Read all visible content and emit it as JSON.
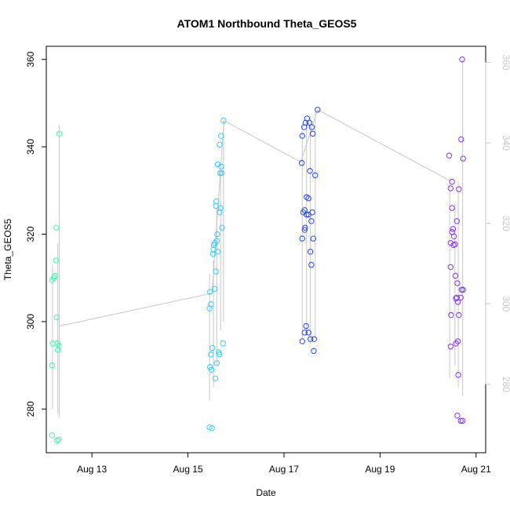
{
  "chart_data": {
    "type": "scatter",
    "title": "ATOM1 Northbound Theta_GEOS5",
    "xlabel": "Date",
    "ylabel": "Theta_GEOS5",
    "x_ticks": [
      {
        "label": "Aug 13",
        "day": 13
      },
      {
        "label": "Aug 15",
        "day": 15
      },
      {
        "label": "Aug 17",
        "day": 17
      },
      {
        "label": "Aug 19",
        "day": 19
      },
      {
        "label": "Aug 21",
        "day": 21
      }
    ],
    "xlim_days": [
      12.05,
      21.2
    ],
    "ylim": [
      270,
      363
    ],
    "y_ticks": [
      280,
      300,
      320,
      340,
      360
    ],
    "right_axis_ticks": [
      280,
      300,
      320,
      340,
      360
    ],
    "right_axis_ylim": [
      263,
      364
    ],
    "grid": false,
    "colors": {
      "group1": "#33ffaa",
      "group2": "#33ccff",
      "group3": "#2244ff",
      "group4": "#8833ff",
      "range_lines": "#c8c8c8",
      "mean_line": "#c8c8c8"
    },
    "mean_line": [
      {
        "day": 12.33,
        "value": 299
      },
      {
        "day": 15.5,
        "value": 306.5
      },
      {
        "day": 15.75,
        "value": 346
      },
      {
        "day": 17.35,
        "value": 336.5
      },
      {
        "day": 17.7,
        "value": 348.5
      },
      {
        "day": 20.5,
        "value": 332
      }
    ],
    "series": [
      {
        "color_key": "group1",
        "range_lines": [
          {
            "day": 12.18,
            "low": 280,
            "high": 313
          },
          {
            "day": 12.29,
            "low": 279,
            "high": 318
          },
          {
            "day": 12.32,
            "low": 278,
            "high": 345
          }
        ],
        "points": [
          {
            "day": 12.17,
            "value": 274
          },
          {
            "day": 12.17,
            "value": 290
          },
          {
            "day": 12.18,
            "value": 295
          },
          {
            "day": 12.17,
            "value": 309.5
          },
          {
            "day": 12.21,
            "value": 310
          },
          {
            "day": 12.23,
            "value": 310.5
          },
          {
            "day": 12.25,
            "value": 314
          },
          {
            "day": 12.26,
            "value": 321.5
          },
          {
            "day": 12.27,
            "value": 301
          },
          {
            "day": 12.28,
            "value": 295
          },
          {
            "day": 12.29,
            "value": 293.5
          },
          {
            "day": 12.31,
            "value": 294.5
          },
          {
            "day": 12.27,
            "value": 272.8
          },
          {
            "day": 12.31,
            "value": 273
          },
          {
            "day": 12.32,
            "value": 343
          }
        ]
      },
      {
        "color_key": "group2",
        "range_lines": [
          {
            "day": 15.45,
            "low": 282,
            "high": 311
          },
          {
            "day": 15.53,
            "low": 285,
            "high": 314
          },
          {
            "day": 15.6,
            "low": 290,
            "high": 326
          },
          {
            "day": 15.68,
            "low": 298,
            "high": 336
          },
          {
            "day": 15.74,
            "low": 300,
            "high": 346
          }
        ],
        "points": [
          {
            "day": 15.45,
            "value": 275.8
          },
          {
            "day": 15.5,
            "value": 275.6
          },
          {
            "day": 15.46,
            "value": 289.6
          },
          {
            "day": 15.49,
            "value": 289
          },
          {
            "day": 15.48,
            "value": 292.5
          },
          {
            "day": 15.51,
            "value": 294
          },
          {
            "day": 15.45,
            "value": 303
          },
          {
            "day": 15.48,
            "value": 304
          },
          {
            "day": 15.46,
            "value": 306.8
          },
          {
            "day": 15.57,
            "value": 287
          },
          {
            "day": 15.6,
            "value": 290.5
          },
          {
            "day": 15.64,
            "value": 293
          },
          {
            "day": 15.65,
            "value": 292.5
          },
          {
            "day": 15.73,
            "value": 295
          },
          {
            "day": 15.56,
            "value": 307.5
          },
          {
            "day": 15.58,
            "value": 311.5
          },
          {
            "day": 15.52,
            "value": 315.5
          },
          {
            "day": 15.53,
            "value": 316.5
          },
          {
            "day": 15.54,
            "value": 317.5
          },
          {
            "day": 15.56,
            "value": 318
          },
          {
            "day": 15.62,
            "value": 316
          },
          {
            "day": 15.6,
            "value": 318.5
          },
          {
            "day": 15.61,
            "value": 320
          },
          {
            "day": 15.71,
            "value": 321.5
          },
          {
            "day": 15.58,
            "value": 326.5
          },
          {
            "day": 15.59,
            "value": 327.5
          },
          {
            "day": 15.66,
            "value": 325
          },
          {
            "day": 15.68,
            "value": 326
          },
          {
            "day": 15.62,
            "value": 336
          },
          {
            "day": 15.67,
            "value": 334
          },
          {
            "day": 15.7,
            "value": 334
          },
          {
            "day": 15.69,
            "value": 335.5
          },
          {
            "day": 15.66,
            "value": 340.5
          },
          {
            "day": 15.69,
            "value": 342.5
          },
          {
            "day": 15.74,
            "value": 346
          }
        ]
      },
      {
        "color_key": "group3",
        "range_lines": [
          {
            "day": 17.38,
            "low": 296,
            "high": 345
          },
          {
            "day": 17.47,
            "low": 297,
            "high": 346
          },
          {
            "day": 17.55,
            "low": 295,
            "high": 347
          },
          {
            "day": 17.65,
            "low": 296,
            "high": 348
          }
        ],
        "points": [
          {
            "day": 17.38,
            "value": 295.5
          },
          {
            "day": 17.43,
            "value": 297.5
          },
          {
            "day": 17.46,
            "value": 299
          },
          {
            "day": 17.51,
            "value": 297.5
          },
          {
            "day": 17.55,
            "value": 296
          },
          {
            "day": 17.63,
            "value": 296
          },
          {
            "day": 17.62,
            "value": 293.3
          },
          {
            "day": 17.38,
            "value": 319
          },
          {
            "day": 17.43,
            "value": 321
          },
          {
            "day": 17.44,
            "value": 321.5
          },
          {
            "day": 17.4,
            "value": 325
          },
          {
            "day": 17.43,
            "value": 325.5
          },
          {
            "day": 17.47,
            "value": 324.5
          },
          {
            "day": 17.51,
            "value": 324.5
          },
          {
            "day": 17.55,
            "value": 316
          },
          {
            "day": 17.57,
            "value": 313
          },
          {
            "day": 17.61,
            "value": 319
          },
          {
            "day": 17.59,
            "value": 325
          },
          {
            "day": 17.57,
            "value": 323
          },
          {
            "day": 17.47,
            "value": 328.5
          },
          {
            "day": 17.51,
            "value": 328.2
          },
          {
            "day": 17.54,
            "value": 334.5
          },
          {
            "day": 17.65,
            "value": 333.5
          },
          {
            "day": 17.37,
            "value": 336.3
          },
          {
            "day": 17.38,
            "value": 342.5
          },
          {
            "day": 17.42,
            "value": 344.5
          },
          {
            "day": 17.45,
            "value": 345.5
          },
          {
            "day": 17.48,
            "value": 346.5
          },
          {
            "day": 17.53,
            "value": 345.5
          },
          {
            "day": 17.58,
            "value": 344.5
          },
          {
            "day": 17.6,
            "value": 343
          },
          {
            "day": 17.7,
            "value": 348.5
          }
        ]
      },
      {
        "color_key": "group4",
        "range_lines": [
          {
            "day": 20.45,
            "low": 287,
            "high": 333
          },
          {
            "day": 20.56,
            "low": 290,
            "high": 327
          },
          {
            "day": 20.63,
            "low": 285,
            "high": 332
          },
          {
            "day": 20.72,
            "low": 283,
            "high": 360
          }
        ],
        "points": [
          {
            "day": 20.47,
            "value": 294.3
          },
          {
            "day": 20.48,
            "value": 301.5
          },
          {
            "day": 20.47,
            "value": 312.5
          },
          {
            "day": 20.47,
            "value": 330.5
          },
          {
            "day": 20.5,
            "value": 332
          },
          {
            "day": 20.44,
            "value": 338
          },
          {
            "day": 20.47,
            "value": 318
          },
          {
            "day": 20.5,
            "value": 320.5
          },
          {
            "day": 20.52,
            "value": 321.2
          },
          {
            "day": 20.54,
            "value": 319.5
          },
          {
            "day": 20.53,
            "value": 317.5
          },
          {
            "day": 20.56,
            "value": 317.7
          },
          {
            "day": 20.5,
            "value": 326
          },
          {
            "day": 20.58,
            "value": 305.3
          },
          {
            "day": 20.6,
            "value": 305.5
          },
          {
            "day": 20.62,
            "value": 304.5
          },
          {
            "day": 20.57,
            "value": 310.5
          },
          {
            "day": 20.61,
            "value": 308.8
          },
          {
            "day": 20.64,
            "value": 301.5
          },
          {
            "day": 20.58,
            "value": 295
          },
          {
            "day": 20.62,
            "value": 295.5
          },
          {
            "day": 20.63,
            "value": 287.8
          },
          {
            "day": 20.61,
            "value": 278.5
          },
          {
            "day": 20.68,
            "value": 277.3
          },
          {
            "day": 20.72,
            "value": 277.3
          },
          {
            "day": 20.6,
            "value": 323
          },
          {
            "day": 20.64,
            "value": 330.3
          },
          {
            "day": 20.7,
            "value": 307.3
          },
          {
            "day": 20.73,
            "value": 307.3
          },
          {
            "day": 20.68,
            "value": 305.5
          },
          {
            "day": 20.69,
            "value": 341.7
          },
          {
            "day": 20.73,
            "value": 337.3
          },
          {
            "day": 20.71,
            "value": 360
          }
        ]
      }
    ]
  }
}
